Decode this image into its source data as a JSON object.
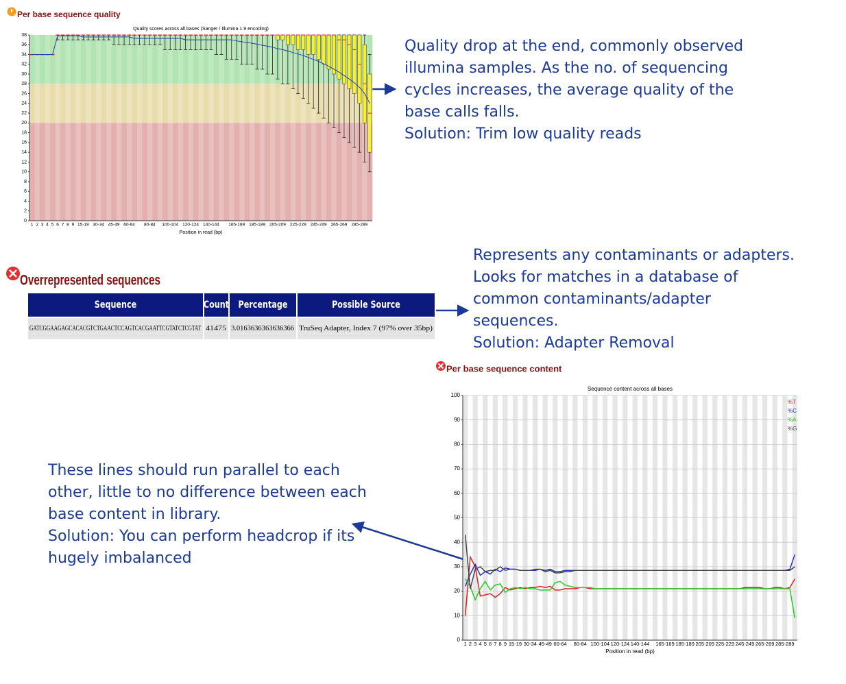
{
  "sections": [
    "Per base sequence quality",
    "Overrepresented sequences",
    "Per base sequence content"
  ],
  "annotations": [
    {
      "lines": [
        "Quality drop at the end, commonly observed",
        "illumina samples. As the no. of sequencing",
        "cycles increases, the average quality of the",
        "base calls falls.",
        "Solution: Trim low quality reads"
      ]
    },
    {
      "lines": [
        "Represents any contaminants or adapters.",
        "Looks for matches in a database of",
        "common contaminants/adapter",
        "sequences.",
        "Solution: Adapter Removal"
      ]
    },
    {
      "lines": [
        "These lines should run parallel to each",
        "other, little to no difference between each",
        "base content in library.",
        "Solution: You can perform headcrop if its",
        "hugely imbalanced"
      ]
    }
  ],
  "table": {
    "header": [
      "Sequence",
      "Count",
      "Percentage",
      "Possible Source"
    ],
    "rows": [
      [
        "GATCGGAAGAGCACACGTCTGAACTCCAGTCACGAATTCGTATCTCGTAT",
        41475,
        "3.0163636363636366",
        "TruSeq Adapter, Index 7 (97% over 35bp)"
      ]
    ]
  },
  "chart_data": [
    {
      "type": "box",
      "title": "Quality scores across all bases (Sanger / Illumina 1.9 encoding)",
      "x_label": "Position in read (bp)",
      "categories": [
        "1",
        "2",
        "3",
        "4",
        "5",
        "6",
        "7",
        "8",
        "9",
        null,
        "15-19",
        null,
        null,
        "30-34",
        null,
        null,
        "45-49",
        null,
        null,
        "60-64",
        null,
        null,
        null,
        "80-84",
        null,
        null,
        null,
        "100-104",
        null,
        null,
        null,
        "120-124",
        null,
        null,
        null,
        "140-144",
        null,
        null,
        null,
        null,
        "165-169",
        null,
        null,
        null,
        "185-189",
        null,
        null,
        null,
        "205-209",
        null,
        null,
        null,
        "225-229",
        null,
        null,
        null,
        "245-249",
        null,
        null,
        null,
        "265-269",
        null,
        null,
        null,
        "285-289",
        null,
        null
      ],
      "median": [
        34,
        34,
        34,
        34,
        34,
        38,
        38,
        38,
        38,
        38,
        38,
        38,
        38,
        38,
        38,
        38,
        38,
        38,
        38,
        38,
        38,
        38,
        38,
        38,
        38,
        38,
        38,
        38,
        38,
        38,
        38,
        38,
        38,
        38,
        38,
        38,
        38,
        38,
        38,
        38,
        38,
        38,
        38,
        38,
        38,
        38,
        38,
        38,
        38,
        38,
        38,
        38,
        38,
        38,
        38,
        38,
        38,
        38,
        38,
        38,
        37,
        37,
        36,
        35,
        32,
        28,
        22
      ],
      "q1": [
        34,
        34,
        34,
        34,
        34,
        38,
        38,
        38,
        38,
        38,
        38,
        38,
        38,
        38,
        38,
        38,
        38,
        38,
        38,
        38,
        38,
        38,
        38,
        38,
        38,
        38,
        38,
        38,
        38,
        38,
        38,
        38,
        38,
        38,
        38,
        38,
        38,
        38,
        38,
        38,
        38,
        38,
        38,
        38,
        38,
        38,
        38,
        38,
        37,
        37,
        36,
        36,
        35,
        35,
        34,
        34,
        33,
        32,
        31,
        30,
        29,
        28,
        27,
        26,
        24,
        20,
        14
      ],
      "q3": [
        34,
        34,
        34,
        34,
        34,
        38,
        38,
        38,
        38,
        38,
        38,
        38,
        38,
        38,
        38,
        38,
        38,
        38,
        38,
        38,
        38,
        38,
        38,
        38,
        38,
        38,
        38,
        38,
        38,
        38,
        38,
        38,
        38,
        38,
        38,
        38,
        38,
        38,
        38,
        38,
        38,
        38,
        38,
        38,
        38,
        38,
        38,
        38,
        38,
        38,
        38,
        38,
        38,
        38,
        38,
        38,
        38,
        38,
        38,
        38,
        38,
        38,
        38,
        38,
        38,
        36,
        30
      ],
      "lower": [
        34,
        34,
        34,
        34,
        34,
        37,
        37,
        37,
        37,
        37,
        37,
        37,
        37,
        37,
        37,
        37,
        36,
        36,
        36,
        36,
        36,
        36,
        36,
        36,
        36,
        36,
        35,
        35,
        35,
        35,
        35,
        35,
        35,
        35,
        35,
        35,
        34,
        34,
        33,
        33,
        33,
        32,
        32,
        32,
        31,
        31,
        30,
        30,
        29,
        28,
        28,
        27,
        26,
        25,
        24,
        23,
        22,
        21,
        20,
        19,
        18,
        17,
        16,
        15,
        14,
        12,
        10
      ],
      "upper": [
        34,
        34,
        34,
        34,
        34,
        38,
        38,
        38,
        38,
        38,
        38,
        38,
        38,
        38,
        38,
        38,
        38,
        38,
        38,
        38,
        38,
        38,
        38,
        38,
        38,
        38,
        38,
        38,
        38,
        38,
        38,
        38,
        38,
        38,
        38,
        38,
        38,
        38,
        38,
        38,
        38,
        38,
        38,
        38,
        38,
        38,
        38,
        38,
        38,
        38,
        38,
        38,
        38,
        38,
        38,
        38,
        38,
        38,
        38,
        38,
        38,
        38,
        38,
        38,
        38,
        38,
        34
      ],
      "mean": {
        "color": "#2b3fa8",
        "values": [
          34,
          34,
          34,
          34,
          34,
          37.8,
          37.8,
          37.8,
          37.8,
          37.8,
          37.6,
          37.6,
          37.6,
          37.6,
          37.6,
          37.6,
          37.6,
          37.6,
          37.6,
          37.6,
          37.3,
          37.3,
          37.3,
          37.3,
          37.3,
          37.3,
          37.3,
          37.3,
          37.3,
          37.3,
          37,
          37,
          37,
          37,
          37,
          37,
          37,
          37,
          37,
          37,
          36.8,
          36.6,
          36.5,
          36.3,
          36.1,
          35.9,
          35.7,
          35.5,
          35.2,
          35,
          34.7,
          34.4,
          34.1,
          33.8,
          33.4,
          33,
          32.6,
          32.1,
          31.6,
          31,
          30.4,
          29.7,
          29,
          28.2,
          27.3,
          26,
          24
        ]
      },
      "box_color": "#f5f032",
      "median_color": "#d42020",
      "bands": [
        {
          "from": 28,
          "to": 38,
          "color": "#b2e3b2"
        },
        {
          "from": 20,
          "to": 28,
          "color": "#e8dcac"
        },
        {
          "from": 0,
          "to": 20,
          "color": "#e3b0b0"
        }
      ],
      "ylim": [
        0,
        38
      ],
      "yticks": [
        0,
        2,
        4,
        6,
        8,
        10,
        12,
        14,
        16,
        18,
        20,
        22,
        24,
        26,
        28,
        30,
        32,
        34,
        36,
        38
      ],
      "grid": false
    },
    {
      "type": "line",
      "title": "Sequence content across all bases",
      "x_label": "Position in read (bp)",
      "categories": [
        "1",
        "2",
        "3",
        "4",
        "5",
        "6",
        "7",
        "8",
        "9",
        null,
        "15-19",
        null,
        null,
        "30-34",
        null,
        null,
        "45-49",
        null,
        null,
        "60-64",
        null,
        null,
        null,
        "80-84",
        null,
        null,
        null,
        "100-104",
        null,
        null,
        null,
        "120-124",
        null,
        null,
        null,
        "140-144",
        null,
        null,
        null,
        null,
        "165-169",
        null,
        null,
        null,
        "185-189",
        null,
        null,
        null,
        "205-209",
        null,
        null,
        null,
        "225-229",
        null,
        null,
        null,
        "245-249",
        null,
        null,
        null,
        "265-269",
        null,
        null,
        null,
        "285-289",
        null,
        null
      ],
      "series": [
        {
          "name": "%T",
          "color": "#e02020",
          "values": [
            10,
            34,
            30,
            18,
            18.5,
            19,
            17.5,
            19,
            21.5,
            20.5,
            21,
            21.5,
            21,
            21.5,
            21.5,
            22,
            21.5,
            22,
            20.5,
            20.5,
            21,
            21,
            21,
            21.5,
            21.5,
            21,
            21,
            21,
            21,
            21,
            21,
            21,
            21,
            21,
            21,
            21,
            21,
            21,
            21,
            21,
            21,
            21,
            21,
            21,
            21,
            21,
            21,
            21,
            21,
            21,
            21,
            21,
            21,
            21,
            21,
            21,
            21.5,
            21.5,
            21.5,
            21.5,
            21,
            21,
            21.5,
            21.5,
            21,
            21.5,
            25
          ]
        },
        {
          "name": "%C",
          "color": "#2233cc",
          "values": [
            22,
            27,
            31,
            26.5,
            28,
            27,
            29,
            28,
            29.5,
            29,
            29,
            28.5,
            28.5,
            28.5,
            28.5,
            29,
            28.5,
            29,
            28,
            28,
            28.5,
            28.5,
            28.5,
            28.5,
            28.5,
            28.5,
            28.5,
            28.5,
            28.5,
            28.5,
            28.5,
            28.5,
            28.5,
            28.5,
            28.5,
            28.5,
            28.5,
            28.5,
            28.5,
            28.5,
            28.5,
            28.5,
            28.5,
            28.5,
            28.5,
            28.5,
            28.5,
            28.5,
            28.5,
            28.5,
            28.5,
            28.5,
            28.5,
            28.5,
            28.5,
            28.5,
            28.5,
            28.5,
            28.5,
            28.5,
            28.5,
            28.5,
            28.5,
            28.5,
            28.5,
            29,
            35
          ]
        },
        {
          "name": "%A",
          "color": "#22cc22",
          "values": [
            25,
            22,
            16.5,
            21,
            24,
            20.5,
            22.5,
            23,
            19.5,
            21,
            21.5,
            21,
            21.5,
            21,
            21,
            20.5,
            20.5,
            20.5,
            23.5,
            24,
            22.5,
            22,
            21.5,
            21.5,
            21.5,
            21.5,
            21,
            21,
            21,
            21,
            21,
            21,
            21,
            21,
            21,
            21,
            21,
            21,
            21,
            21,
            21,
            21,
            21,
            21,
            21,
            21,
            21,
            21,
            21,
            21,
            21,
            21,
            21,
            21,
            21,
            21,
            21,
            21,
            21,
            21,
            21,
            21,
            21,
            21,
            21,
            21,
            9
          ]
        },
        {
          "name": "%G",
          "color": "#444444",
          "values": [
            43,
            21,
            29,
            30,
            28,
            28.5,
            28.5,
            30,
            28.5,
            29,
            29,
            28.5,
            28.5,
            28.5,
            29,
            29,
            28,
            28.5,
            27.5,
            27.5,
            28,
            28,
            28.5,
            28.5,
            28.5,
            28.5,
            28.5,
            28.5,
            28.5,
            28.5,
            28.5,
            28.5,
            28.5,
            28.5,
            28.5,
            28.5,
            28.5,
            28.5,
            28.5,
            28.5,
            28.5,
            28.5,
            28.5,
            28.5,
            28.5,
            28.5,
            28.5,
            28.5,
            28.5,
            28.5,
            28.5,
            28.5,
            28.5,
            28.5,
            28.5,
            28.5,
            28.5,
            28.5,
            28.5,
            28.5,
            28.5,
            28.5,
            28.5,
            28.5,
            28.5,
            28.5,
            30
          ]
        }
      ],
      "ylim": [
        0,
        100
      ],
      "yticks": [
        0,
        10,
        20,
        30,
        40,
        50,
        60,
        70,
        80,
        90,
        100
      ],
      "grid": true,
      "legend": "top-right"
    }
  ]
}
